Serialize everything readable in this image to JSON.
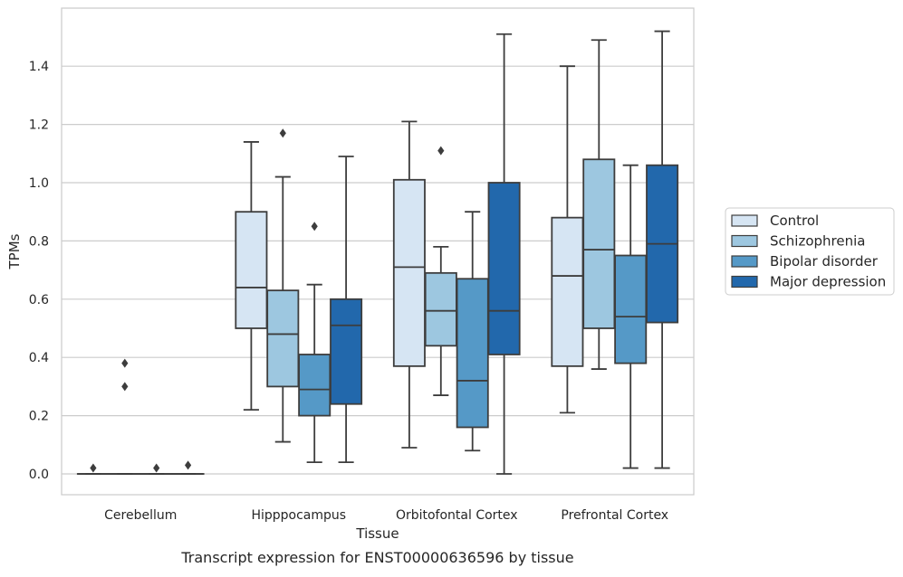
{
  "chart_data": {
    "type": "boxplot",
    "title": "",
    "caption": "Transcript expression for ENST00000636596 by tissue",
    "xlabel": "Tissue",
    "ylabel": "TPMs",
    "ylim": [
      -0.07,
      1.58
    ],
    "yticks": [
      0.0,
      0.2,
      0.4,
      0.6,
      0.8,
      1.0,
      1.2,
      1.4
    ],
    "ytick_labels": [
      "0.0",
      "0.2",
      "0.4",
      "0.6",
      "0.8",
      "1.0",
      "1.2",
      "1.4"
    ],
    "grid": "horizontal",
    "legend_position": "right",
    "categories": [
      "Cerebellum",
      "Hipppocampus",
      "Orbitofontal Cortex",
      "Prefrontal Cortex"
    ],
    "series": [
      {
        "name": "Control",
        "color": "#d6e5f3",
        "boxes": [
          {
            "whislo": 0.0,
            "q1": 0.0,
            "med": 0.0,
            "q3": 0.0,
            "whishi": 0.0,
            "fliers": [
              0.02
            ]
          },
          {
            "whislo": 0.22,
            "q1": 0.5,
            "med": 0.64,
            "q3": 0.9,
            "whishi": 1.14,
            "fliers": []
          },
          {
            "whislo": 0.09,
            "q1": 0.37,
            "med": 0.71,
            "q3": 1.01,
            "whishi": 1.21,
            "fliers": []
          },
          {
            "whislo": 0.21,
            "q1": 0.37,
            "med": 0.68,
            "q3": 0.88,
            "whishi": 1.4,
            "fliers": []
          }
        ]
      },
      {
        "name": "Schizophrenia",
        "color": "#9dc7e0",
        "boxes": [
          {
            "whislo": 0.0,
            "q1": 0.0,
            "med": 0.0,
            "q3": 0.0,
            "whishi": 0.0,
            "fliers": [
              0.38,
              0.3
            ]
          },
          {
            "whislo": 0.11,
            "q1": 0.3,
            "med": 0.48,
            "q3": 0.63,
            "whishi": 1.02,
            "fliers": [
              1.17
            ]
          },
          {
            "whislo": 0.27,
            "q1": 0.44,
            "med": 0.56,
            "q3": 0.69,
            "whishi": 0.78,
            "fliers": [
              1.11
            ]
          },
          {
            "whislo": 0.36,
            "q1": 0.5,
            "med": 0.77,
            "q3": 1.08,
            "whishi": 1.49,
            "fliers": []
          }
        ]
      },
      {
        "name": "Bipolar disorder",
        "color": "#5599c7",
        "boxes": [
          {
            "whislo": 0.0,
            "q1": 0.0,
            "med": 0.0,
            "q3": 0.0,
            "whishi": 0.0,
            "fliers": [
              0.02
            ]
          },
          {
            "whislo": 0.04,
            "q1": 0.2,
            "med": 0.29,
            "q3": 0.41,
            "whishi": 0.65,
            "fliers": [
              0.85
            ]
          },
          {
            "whislo": 0.08,
            "q1": 0.16,
            "med": 0.32,
            "q3": 0.67,
            "whishi": 0.9,
            "fliers": []
          },
          {
            "whislo": 0.02,
            "q1": 0.38,
            "med": 0.54,
            "q3": 0.75,
            "whishi": 1.06,
            "fliers": []
          }
        ]
      },
      {
        "name": "Major depression",
        "color": "#2268ac",
        "boxes": [
          {
            "whislo": 0.0,
            "q1": 0.0,
            "med": 0.0,
            "q3": 0.0,
            "whishi": 0.0,
            "fliers": [
              0.03
            ]
          },
          {
            "whislo": 0.04,
            "q1": 0.24,
            "med": 0.51,
            "q3": 0.6,
            "whishi": 1.09,
            "fliers": []
          },
          {
            "whislo": 0.0,
            "q1": 0.41,
            "med": 0.56,
            "q3": 1.0,
            "whishi": 1.51,
            "fliers": []
          },
          {
            "whislo": 0.02,
            "q1": 0.52,
            "med": 0.79,
            "q3": 1.06,
            "whishi": 1.52,
            "fliers": []
          }
        ]
      }
    ]
  }
}
